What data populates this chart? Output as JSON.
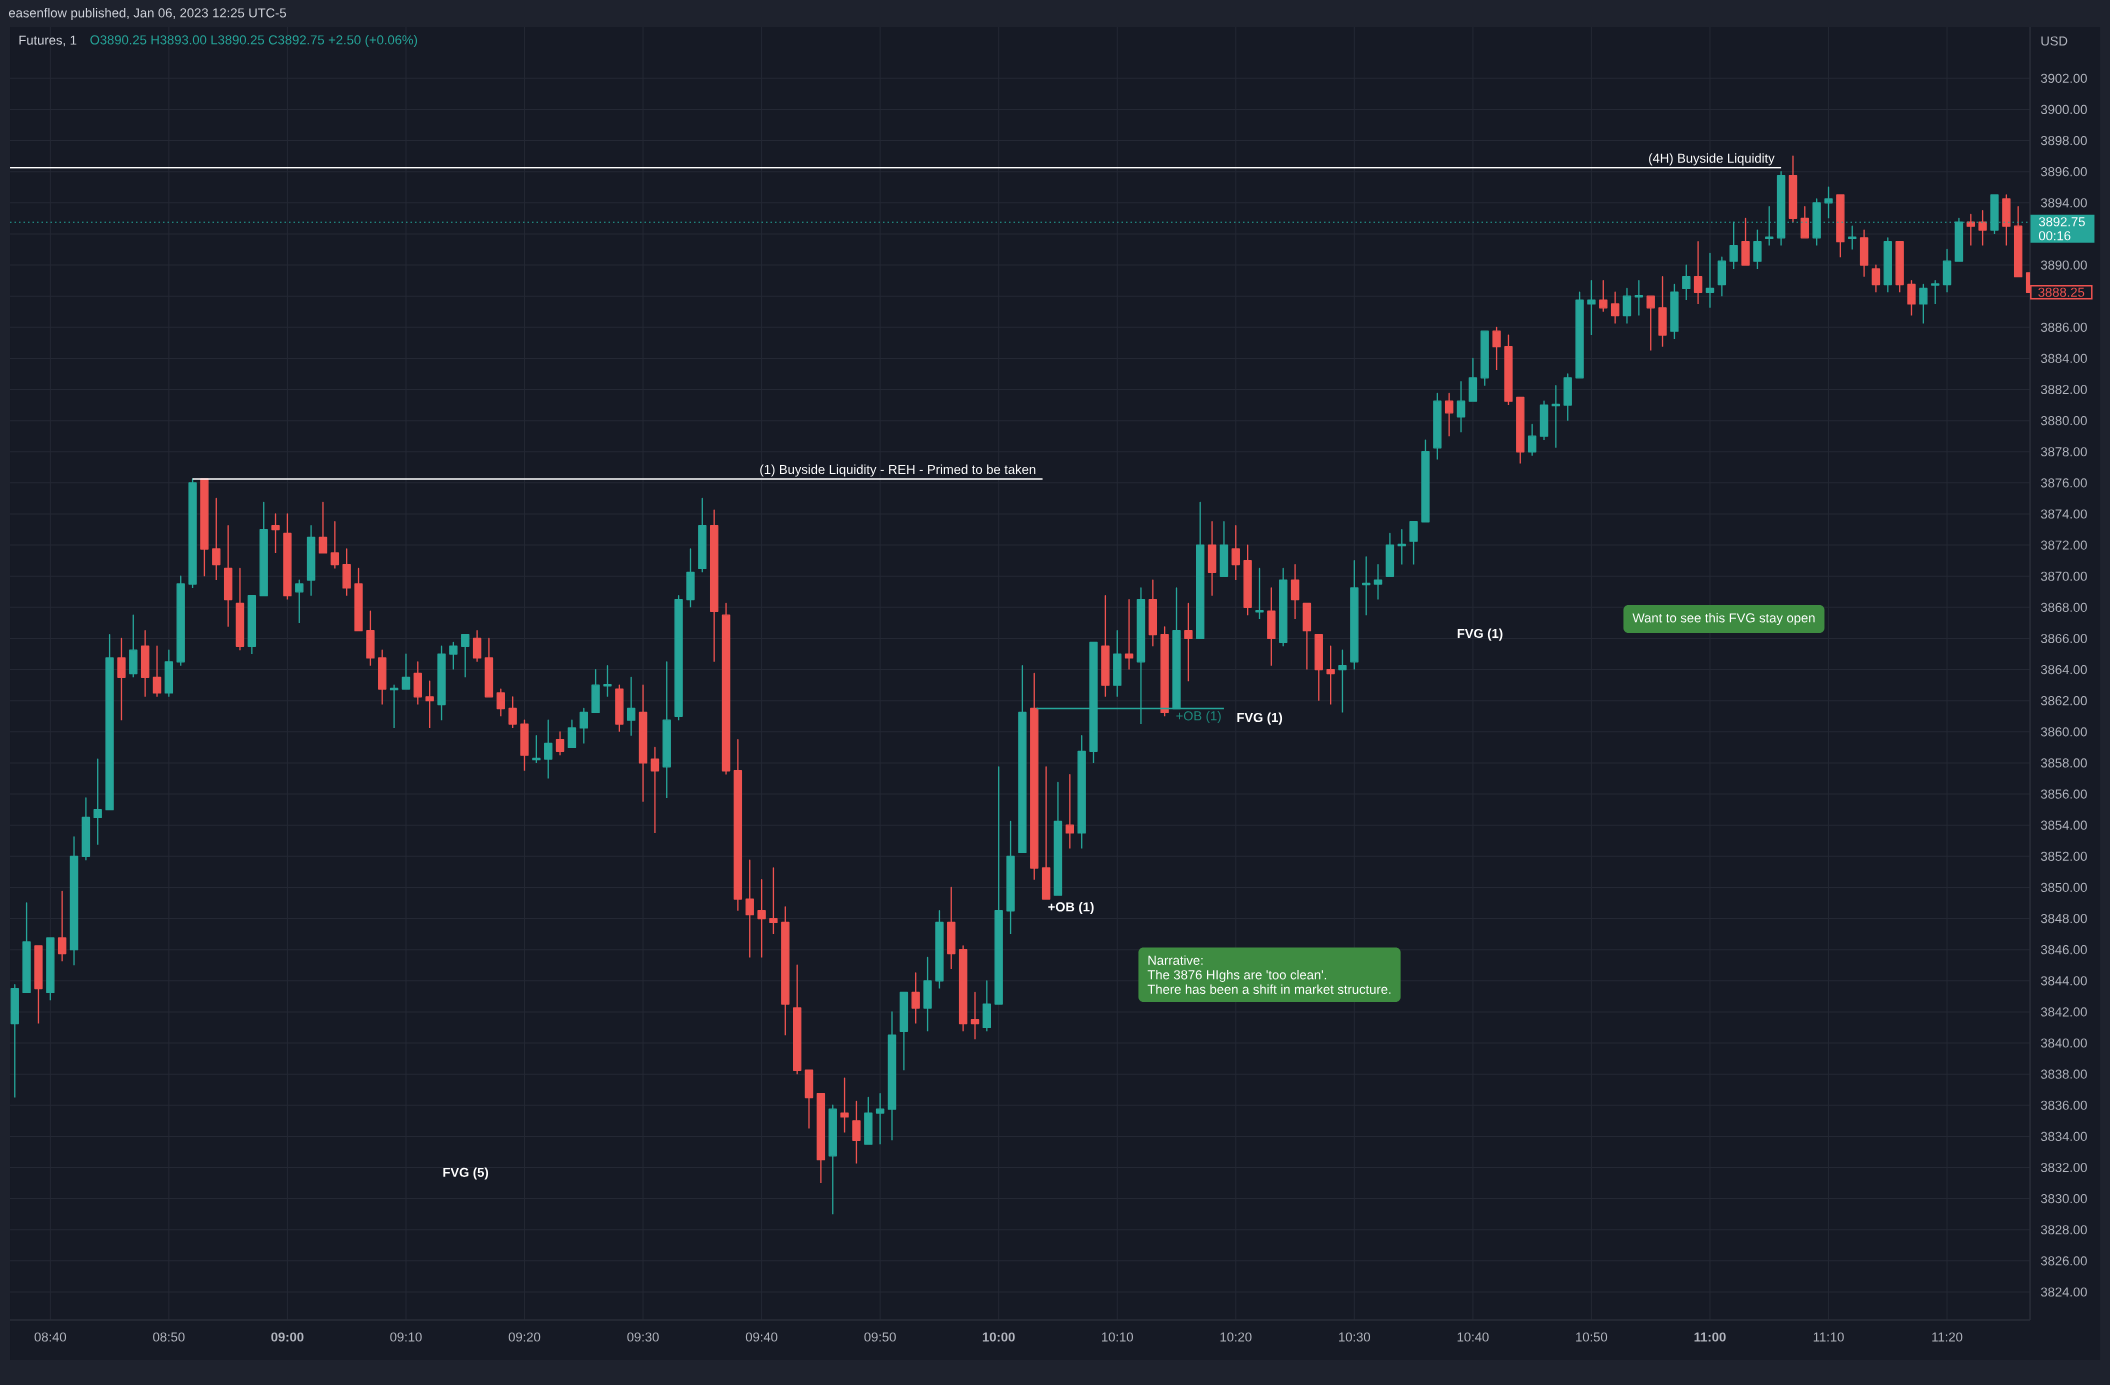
{
  "chart_data": {
    "type": "candlestick",
    "title": "Futures, 1",
    "subtitle": "O3890.25 H3893.00 L3890.25 C3892.75 +2.50 (+0.06%)",
    "ylabel": "USD",
    "x": [
      8.6167,
      8.6333,
      8.65,
      8.6667,
      8.6833,
      8.7,
      8.7167,
      8.7333,
      8.75,
      8.7667,
      8.7833,
      8.8,
      8.8167,
      8.8333,
      8.85,
      8.8667,
      8.8833,
      8.9,
      8.9167,
      8.9333,
      8.95,
      8.9667,
      8.9833,
      9,
      9.0167,
      9.0333,
      9.05,
      9.0667,
      9.0833,
      9.1,
      9.1167,
      9.1333,
      9.15,
      9.1667,
      9.1833,
      9.2,
      9.2167,
      9.2333,
      9.25,
      9.2667,
      9.2833,
      9.3,
      9.3167,
      9.3333,
      9.35,
      9.3667,
      9.3833,
      9.4,
      9.4167,
      9.4333,
      9.45,
      9.4667,
      9.4833,
      9.5,
      9.5167,
      9.5333,
      9.55,
      9.5667,
      9.5833,
      9.6,
      9.6167,
      9.6333,
      9.65,
      9.6667,
      9.6833,
      9.7,
      9.7167,
      9.7333,
      9.75,
      9.7667,
      9.7833,
      9.8,
      9.8167,
      9.8333,
      9.85,
      9.8667,
      9.8833,
      9.9,
      9.9167,
      9.9333,
      9.95,
      9.9667,
      9.9833,
      10,
      10.0167,
      10.0333,
      10.05,
      10.0667,
      10.0833,
      10.1,
      10.1167,
      10.1333,
      10.15,
      10.1667,
      10.1833,
      10.2,
      10.2167,
      10.2333,
      10.25,
      10.2667,
      10.2833,
      10.3,
      10.3167,
      10.3333,
      10.35,
      10.3667,
      10.3833,
      10.4,
      10.4167,
      10.4333,
      10.45,
      10.4667,
      10.4833,
      10.5,
      10.5167,
      10.5333,
      10.55,
      10.5667,
      10.5833,
      10.6,
      10.6167,
      10.6333,
      10.65,
      10.6667,
      10.6833,
      10.7,
      10.7167,
      10.7333,
      10.75,
      10.7667,
      10.7833,
      10.8,
      10.8167,
      10.8333,
      10.85,
      10.8667,
      10.8833,
      10.9,
      10.9167,
      10.9333,
      10.95,
      10.9667,
      10.9833,
      11,
      11.0167,
      11.0333,
      11.05,
      11.0667,
      11.0833,
      11.1,
      11.1167,
      11.1333,
      11.15,
      11.1667,
      11.1833,
      11.2,
      11.2167,
      11.2333,
      11.25,
      11.2667,
      11.2833,
      11.3,
      11.3167,
      11.3333,
      11.35,
      11.3667,
      11.3833,
      11.4,
      11.4167,
      11.4333,
      11.45
    ],
    "ohlc": [
      [
        3841.25,
        3843.75,
        3836.5,
        3843.5
      ],
      [
        3843.25,
        3849,
        3843.25,
        3846.5
      ],
      [
        3846.25,
        3846.25,
        3841.25,
        3843.5
      ],
      [
        3843.25,
        3846.75,
        3842.75,
        3846.75
      ],
      [
        3846.75,
        3849.75,
        3845.25,
        3845.75
      ],
      [
        3846,
        3853.25,
        3845,
        3852
      ],
      [
        3852,
        3855.75,
        3851.75,
        3854.5
      ],
      [
        3854.5,
        3858.25,
        3852.75,
        3855
      ],
      [
        3855,
        3866.25,
        3855,
        3864.75
      ],
      [
        3864.75,
        3866,
        3860.75,
        3863.5
      ],
      [
        3863.75,
        3867.5,
        3863.5,
        3865.25
      ],
      [
        3865.5,
        3866.5,
        3862.25,
        3863.5
      ],
      [
        3863.5,
        3865.5,
        3862.25,
        3862.5
      ],
      [
        3862.5,
        3865.25,
        3862.25,
        3864.5
      ],
      [
        3864.5,
        3870,
        3864.25,
        3869.5
      ],
      [
        3869.5,
        3876.25,
        3869.25,
        3876
      ],
      [
        3876.25,
        3876.25,
        3870,
        3871.75
      ],
      [
        3871.75,
        3875,
        3869.75,
        3870.75
      ],
      [
        3870.5,
        3873.25,
        3866.75,
        3868.5
      ],
      [
        3868.25,
        3870.5,
        3865.25,
        3865.5
      ],
      [
        3865.5,
        3868.75,
        3865,
        3868.75
      ],
      [
        3868.75,
        3874.75,
        3868.75,
        3873
      ],
      [
        3873.25,
        3874,
        3871.5,
        3873
      ],
      [
        3872.75,
        3874,
        3868.5,
        3868.75
      ],
      [
        3869,
        3869.75,
        3867,
        3869.5
      ],
      [
        3869.75,
        3873.25,
        3868.75,
        3872.5
      ],
      [
        3872.5,
        3874.75,
        3871.5,
        3871.5
      ],
      [
        3871.5,
        3873.5,
        3870.5,
        3870.75
      ],
      [
        3870.75,
        3871.75,
        3868.75,
        3869.25
      ],
      [
        3869.5,
        3870.5,
        3866.5,
        3866.5
      ],
      [
        3866.5,
        3867.75,
        3864.25,
        3864.75
      ],
      [
        3864.75,
        3865.25,
        3861.75,
        3862.75
      ],
      [
        3862.75,
        3863,
        3860.25,
        3862.75
      ],
      [
        3862.75,
        3865,
        3862.75,
        3863.5
      ],
      [
        3863.75,
        3864.5,
        3861.75,
        3862.25
      ],
      [
        3862.25,
        3863.25,
        3860.25,
        3862
      ],
      [
        3861.75,
        3865.5,
        3860.75,
        3865
      ],
      [
        3865,
        3865.75,
        3864,
        3865.5
      ],
      [
        3865.5,
        3866.25,
        3863.5,
        3866.25
      ],
      [
        3866,
        3866.5,
        3864.5,
        3864.75
      ],
      [
        3864.75,
        3866,
        3862.25,
        3862.25
      ],
      [
        3862.5,
        3862.75,
        3861,
        3861.5
      ],
      [
        3861.5,
        3862.25,
        3860.25,
        3860.5
      ],
      [
        3860.5,
        3860.75,
        3857.5,
        3858.5
      ],
      [
        3858.25,
        3859.75,
        3858,
        3858.25
      ],
      [
        3858.25,
        3860.75,
        3857,
        3859.25
      ],
      [
        3859.5,
        3860,
        3858.5,
        3858.75
      ],
      [
        3859,
        3860.75,
        3859,
        3860.25
      ],
      [
        3860.25,
        3861.5,
        3859.25,
        3861.25
      ],
      [
        3861.25,
        3864,
        3861.25,
        3863
      ],
      [
        3863,
        3864.25,
        3862.25,
        3863
      ],
      [
        3862.75,
        3863,
        3860,
        3860.5
      ],
      [
        3860.75,
        3863.5,
        3859.75,
        3861.5
      ],
      [
        3861.25,
        3863,
        3855.5,
        3858
      ],
      [
        3858.25,
        3859,
        3853.5,
        3857.5
      ],
      [
        3857.75,
        3864.5,
        3855.75,
        3860.75
      ],
      [
        3861,
        3868.75,
        3860.75,
        3868.5
      ],
      [
        3868.5,
        3871.75,
        3868,
        3870.25
      ],
      [
        3870.5,
        3875,
        3870.25,
        3873.25
      ],
      [
        3873.25,
        3874.25,
        3864.5,
        3867.75
      ],
      [
        3867.5,
        3868.25,
        3857.25,
        3857.5
      ],
      [
        3857.5,
        3859.5,
        3848.5,
        3849.25
      ],
      [
        3849.25,
        3851.75,
        3845.5,
        3848.25
      ],
      [
        3848.5,
        3850.5,
        3845.5,
        3848
      ],
      [
        3848,
        3851.25,
        3847,
        3847.75
      ],
      [
        3847.75,
        3848.75,
        3840.5,
        3842.5
      ],
      [
        3842.25,
        3845,
        3838,
        3838.25
      ],
      [
        3838.25,
        3838.25,
        3834.5,
        3836.5
      ],
      [
        3836.75,
        3836.75,
        3831,
        3832.5
      ],
      [
        3832.75,
        3836,
        3829,
        3835.75
      ],
      [
        3835.5,
        3837.75,
        3834.25,
        3835.25
      ],
      [
        3835,
        3836.25,
        3832.25,
        3833.75
      ],
      [
        3833.5,
        3836.5,
        3833.5,
        3835.5
      ],
      [
        3835.5,
        3836.75,
        3833.5,
        3835.75
      ],
      [
        3835.75,
        3842,
        3833.75,
        3840.5
      ],
      [
        3840.75,
        3843.25,
        3838.25,
        3843.25
      ],
      [
        3843.25,
        3844.5,
        3841.25,
        3842.25
      ],
      [
        3842.25,
        3845.5,
        3840.75,
        3844
      ],
      [
        3844,
        3848.5,
        3843.5,
        3847.75
      ],
      [
        3847.75,
        3850,
        3844.75,
        3845.75
      ],
      [
        3846,
        3846.25,
        3840.75,
        3841.25
      ],
      [
        3841.5,
        3843.25,
        3840.25,
        3841.25
      ],
      [
        3841,
        3844,
        3840.75,
        3842.5
      ],
      [
        3842.5,
        3857.75,
        3842.5,
        3848.5
      ],
      [
        3848.5,
        3854.25,
        3847,
        3852
      ],
      [
        3852.25,
        3864.25,
        3852.25,
        3861.25
      ],
      [
        3861.5,
        3863.75,
        3850.5,
        3851.25
      ],
      [
        3851.25,
        3857.75,
        3849.25,
        3849.25
      ],
      [
        3849.5,
        3856.75,
        3849.5,
        3854.25
      ],
      [
        3854,
        3857.25,
        3852.5,
        3853.5
      ],
      [
        3853.5,
        3859.75,
        3852.5,
        3858.75
      ],
      [
        3858.75,
        3865.75,
        3858,
        3865.75
      ],
      [
        3865.5,
        3868.75,
        3862.25,
        3863
      ],
      [
        3863,
        3866.5,
        3862.25,
        3865
      ],
      [
        3865,
        3868.5,
        3864,
        3864.75
      ],
      [
        3864.5,
        3869.25,
        3860.5,
        3868.5
      ],
      [
        3868.5,
        3869.75,
        3865.5,
        3866.25
      ],
      [
        3866.25,
        3866.75,
        3861,
        3861.25
      ],
      [
        3861.5,
        3869.25,
        3861.5,
        3866.5
      ],
      [
        3866.5,
        3868.25,
        3863.25,
        3866
      ],
      [
        3866,
        3874.75,
        3866,
        3872
      ],
      [
        3872,
        3873.5,
        3868.75,
        3870.25
      ],
      [
        3870,
        3873.5,
        3870,
        3872
      ],
      [
        3871.75,
        3873.25,
        3869.75,
        3870.75
      ],
      [
        3871,
        3872,
        3867.5,
        3868
      ],
      [
        3867.75,
        3870.5,
        3867.25,
        3867.75
      ],
      [
        3867.75,
        3869.25,
        3864.25,
        3866
      ],
      [
        3865.75,
        3870.5,
        3865.5,
        3869.75
      ],
      [
        3869.75,
        3870.75,
        3867.25,
        3868.5
      ],
      [
        3868.25,
        3868.25,
        3864,
        3866.5
      ],
      [
        3866.25,
        3866.25,
        3862,
        3864
      ],
      [
        3864,
        3865.5,
        3861.75,
        3863.75
      ],
      [
        3864,
        3865.25,
        3861.25,
        3864.25
      ],
      [
        3864.5,
        3871,
        3864,
        3869.25
      ],
      [
        3869.5,
        3871.25,
        3867.5,
        3869.5
      ],
      [
        3869.5,
        3870.75,
        3868.5,
        3869.75
      ],
      [
        3870,
        3872.75,
        3870,
        3872
      ],
      [
        3872,
        3873,
        3870.75,
        3872
      ],
      [
        3872.25,
        3873.5,
        3870.75,
        3873.5
      ],
      [
        3873.5,
        3878.75,
        3873.5,
        3878
      ],
      [
        3878.25,
        3881.75,
        3877.5,
        3881.25
      ],
      [
        3881.25,
        3881.75,
        3879,
        3880.5
      ],
      [
        3880.25,
        3882.5,
        3879.25,
        3881.25
      ],
      [
        3881.25,
        3884,
        3881.25,
        3882.75
      ],
      [
        3882.75,
        3885.75,
        3882.25,
        3885.75
      ],
      [
        3885.75,
        3886,
        3883.25,
        3884.75
      ],
      [
        3884.75,
        3885.5,
        3881,
        3881.25
      ],
      [
        3881.5,
        3881.5,
        3877.25,
        3878
      ],
      [
        3878,
        3879.75,
        3877.75,
        3879
      ],
      [
        3879,
        3881.25,
        3878.75,
        3881
      ],
      [
        3881,
        3882.25,
        3878.25,
        3881
      ],
      [
        3881,
        3883,
        3880,
        3882.75
      ],
      [
        3882.75,
        3888.25,
        3882.75,
        3887.75
      ],
      [
        3887.5,
        3889,
        3885.5,
        3887.75
      ],
      [
        3887.75,
        3889,
        3887,
        3887.25
      ],
      [
        3887.5,
        3888.25,
        3886.25,
        3886.75
      ],
      [
        3886.75,
        3888.5,
        3886.25,
        3888
      ],
      [
        3888,
        3889,
        3886.75,
        3888
      ],
      [
        3888,
        3888,
        3884.5,
        3887.25
      ],
      [
        3887.25,
        3889.25,
        3884.75,
        3885.5
      ],
      [
        3885.75,
        3888.75,
        3885.25,
        3888.25
      ],
      [
        3888.5,
        3890,
        3887.75,
        3889.25
      ],
      [
        3889.25,
        3891.5,
        3887.5,
        3888.25
      ],
      [
        3888.25,
        3890.75,
        3887.25,
        3888.5
      ],
      [
        3888.75,
        3890.5,
        3888,
        3890.25
      ],
      [
        3890.25,
        3892.75,
        3889.75,
        3891.25
      ],
      [
        3891.5,
        3893,
        3890,
        3890
      ],
      [
        3890.25,
        3892.25,
        3889.75,
        3891.5
      ],
      [
        3891.75,
        3893.75,
        3891.25,
        3891.75
      ],
      [
        3891.75,
        3896,
        3891.25,
        3895.75
      ],
      [
        3895.75,
        3897,
        3892.75,
        3893
      ],
      [
        3893,
        3893.75,
        3891.75,
        3891.75
      ],
      [
        3891.75,
        3894.25,
        3891.25,
        3894
      ],
      [
        3894,
        3895,
        3893,
        3894.25
      ],
      [
        3894.5,
        3894.5,
        3890.5,
        3891.5
      ],
      [
        3891.75,
        3892.5,
        3891,
        3891.75
      ],
      [
        3891.75,
        3892.25,
        3889.25,
        3890
      ],
      [
        3889.75,
        3890,
        3888.25,
        3888.75
      ],
      [
        3888.75,
        3891.75,
        3888.25,
        3891.5
      ],
      [
        3891.5,
        3891.5,
        3888.25,
        3888.75
      ],
      [
        3888.75,
        3889,
        3886.75,
        3887.5
      ],
      [
        3887.5,
        3888.75,
        3886.25,
        3888.5
      ],
      [
        3888.75,
        3889,
        3887.5,
        3888.75
      ],
      [
        3888.75,
        3891,
        3888.25,
        3890.25
      ],
      [
        3890.25,
        3893,
        3890.25,
        3892.75
      ],
      [
        3892.75,
        3893.25,
        3891.25,
        3892.5
      ],
      [
        3892.75,
        3893.5,
        3891.25,
        3892.25
      ],
      [
        3892.25,
        3894.5,
        3892,
        3894.5
      ],
      [
        3894.25,
        3894.5,
        3891.25,
        3892.5
      ],
      [
        3892.5,
        3893.75,
        3889.25,
        3889.25
      ],
      [
        3889.5,
        3889.5,
        3888.25,
        3888.25
      ]
    ],
    "colors": [
      "#26a69a",
      "#26a69a",
      "#ef5350",
      "#26a69a",
      "#ef5350",
      "#26a69a",
      "#26a69a",
      "#26a69a",
      "#26a69a",
      "#ef5350",
      "#26a69a",
      "#ef5350",
      "#ef5350",
      "#26a69a",
      "#26a69a",
      "#26a69a",
      "#ef5350",
      "#ef5350",
      "#ef5350",
      "#ef5350",
      "#26a69a",
      "#26a69a",
      "#ef5350",
      "#ef5350",
      "#26a69a",
      "#26a69a",
      "#ef5350",
      "#ef5350",
      "#ef5350",
      "#ef5350",
      "#ef5350",
      "#ef5350",
      "#26a69a",
      "#26a69a",
      "#ef5350",
      "#ef5350",
      "#26a69a",
      "#26a69a",
      "#26a69a",
      "#ef5350",
      "#ef5350",
      "#ef5350",
      "#ef5350",
      "#ef5350",
      "#26a69a",
      "#26a69a",
      "#ef5350",
      "#26a69a",
      "#26a69a",
      "#26a69a",
      "#26a69a",
      "#ef5350",
      "#26a69a",
      "#ef5350",
      "#ef5350",
      "#26a69a",
      "#26a69a",
      "#26a69a",
      "#26a69a",
      "#ef5350",
      "#ef5350",
      "#ef5350",
      "#ef5350",
      "#ef5350",
      "#ef5350",
      "#ef5350",
      "#ef5350",
      "#ef5350",
      "#ef5350",
      "#26a69a",
      "#ef5350",
      "#ef5350",
      "#26a69a",
      "#26a69a",
      "#26a69a",
      "#26a69a",
      "#ef5350",
      "#26a69a",
      "#26a69a",
      "#ef5350",
      "#ef5350",
      "#ef5350",
      "#26a69a",
      "#26a69a",
      "#26a69a",
      "#26a69a",
      "#ef5350",
      "#ef5350",
      "#26a69a",
      "#ef5350",
      "#26a69a",
      "#26a69a",
      "#ef5350",
      "#26a69a",
      "#ef5350",
      "#26a69a",
      "#ef5350",
      "#ef5350",
      "#26a69a",
      "#ef5350",
      "#26a69a",
      "#ef5350",
      "#26a69a",
      "#ef5350",
      "#ef5350",
      "#26a69a",
      "#ef5350",
      "#26a69a",
      "#ef5350",
      "#ef5350",
      "#ef5350",
      "#ef5350",
      "#26a69a",
      "#26a69a",
      "#26a69a",
      "#26a69a",
      "#26a69a",
      "#26a69a",
      "#26a69a",
      "#26a69a",
      "#26a69a",
      "#ef5350",
      "#26a69a",
      "#26a69a",
      "#26a69a",
      "#ef5350",
      "#ef5350",
      "#ef5350",
      "#26a69a",
      "#26a69a",
      "#26a69a",
      "#26a69a",
      "#26a69a",
      "#26a69a",
      "#ef5350",
      "#ef5350",
      "#26a69a",
      "#26a69a",
      "#ef5350",
      "#ef5350",
      "#26a69a",
      "#26a69a",
      "#ef5350",
      "#26a69a",
      "#26a69a",
      "#26a69a",
      "#ef5350",
      "#26a69a",
      "#26a69a",
      "#26a69a",
      "#ef5350",
      "#ef5350",
      "#26a69a",
      "#26a69a",
      "#ef5350",
      "#26a69a",
      "#ef5350",
      "#ef5350",
      "#26a69a",
      "#ef5350",
      "#ef5350",
      "#26a69a",
      "#26a69a",
      "#26a69a",
      "#26a69a",
      "#ef5350",
      "#ef5350",
      "#26a69a",
      "#ef5350",
      "#ef5350",
      "#ef5350"
    ],
    "series": [
      {
        "type": "line",
        "x": [
          8.61,
          11.1
        ],
        "values": [
          3896.25,
          3896.25
        ],
        "color": "#ffffff"
      },
      {
        "type": "line",
        "x": [
          8.8667,
          10.0617
        ],
        "values": [
          3876.25,
          3876.25
        ],
        "color": "#ffffff"
      },
      {
        "type": "line",
        "x": [
          10.0533,
          10.3167
        ],
        "values": [
          3861.5,
          3861.5
        ],
        "color": "#26a69a"
      }
    ],
    "xlim": [
      8.61,
      11.45
    ],
    "ylim": [
      3822.2,
      3905.3
    ],
    "xticks": [
      {
        "value": 8.6667,
        "label": "08:40"
      },
      {
        "value": 8.8333,
        "label": "08:50"
      },
      {
        "value": 9,
        "label": "09:00"
      },
      {
        "value": 9.1667,
        "label": "09:10"
      },
      {
        "value": 9.3333,
        "label": "09:20"
      },
      {
        "value": 9.5,
        "label": "09:30"
      },
      {
        "value": 9.6667,
        "label": "09:40"
      },
      {
        "value": 9.8333,
        "label": "09:50"
      },
      {
        "value": 10,
        "label": "10:00"
      },
      {
        "value": 10.1667,
        "label": "10:10"
      },
      {
        "value": 10.3333,
        "label": "10:20"
      },
      {
        "value": 10.5,
        "label": "10:30"
      },
      {
        "value": 10.6667,
        "label": "10:40"
      },
      {
        "value": 10.8333,
        "label": "10:50"
      },
      {
        "value": 11,
        "label": "11:00"
      },
      {
        "value": 11.1667,
        "label": "11:10"
      },
      {
        "value": 11.3333,
        "label": "11:20"
      }
    ],
    "yticks": [
      {
        "value": 3824,
        "label": "3824.00"
      },
      {
        "value": 3826,
        "label": "3826.00"
      },
      {
        "value": 3828,
        "label": "3828.00"
      },
      {
        "value": 3830,
        "label": "3830.00"
      },
      {
        "value": 3832,
        "label": "3832.00"
      },
      {
        "value": 3834,
        "label": "3834.00"
      },
      {
        "value": 3836,
        "label": "3836.00"
      },
      {
        "value": 3838,
        "label": "3838.00"
      },
      {
        "value": 3840,
        "label": "3840.00"
      },
      {
        "value": 3842,
        "label": "3842.00"
      },
      {
        "value": 3844,
        "label": "3844.00"
      },
      {
        "value": 3846,
        "label": "3846.00"
      },
      {
        "value": 3848,
        "label": "3848.00"
      },
      {
        "value": 3850,
        "label": "3850.00"
      },
      {
        "value": 3852,
        "label": "3852.00"
      },
      {
        "value": 3854,
        "label": "3854.00"
      },
      {
        "value": 3856,
        "label": "3856.00"
      },
      {
        "value": 3858,
        "label": "3858.00"
      },
      {
        "value": 3860,
        "label": "3860.00"
      },
      {
        "value": 3862,
        "label": "3862.00"
      },
      {
        "value": 3864,
        "label": "3864.00"
      },
      {
        "value": 3866,
        "label": "3866.00"
      },
      {
        "value": 3868,
        "label": "3868.00"
      },
      {
        "value": 3870,
        "label": "3870.00"
      },
      {
        "value": 3872,
        "label": "3872.00"
      },
      {
        "value": 3874,
        "label": "3874.00"
      },
      {
        "value": 3876,
        "label": "3876.00"
      },
      {
        "value": 3878,
        "label": "3878.00"
      },
      {
        "value": 3880,
        "label": "3880.00"
      },
      {
        "value": 3882,
        "label": "3882.00"
      },
      {
        "value": 3884,
        "label": "3884.00"
      },
      {
        "value": 3886,
        "label": "3886.00"
      },
      {
        "value": 3888,
        "label": null
      },
      {
        "value": 3890,
        "label": "3890.00"
      },
      {
        "value": 3892,
        "label": null
      },
      {
        "value": 3894,
        "label": "3894.00"
      },
      {
        "value": 3896,
        "label": "3896.00"
      },
      {
        "value": 3898,
        "label": "3898.00"
      },
      {
        "value": 3900,
        "label": "3900.00"
      },
      {
        "value": 3902,
        "label": "3902.00"
      }
    ],
    "grid": true,
    "ref_lines": [
      {
        "axis": "y",
        "value": 3892.75,
        "label": "3892.75 00:16",
        "color": "#26a69a",
        "line_style": "dotted"
      }
    ],
    "annotations": [
      "easenflow published, Jan 06, 2023 12:25 UTC-5",
      {
        "text": "(4H) Buyside Liquidity",
        "x": 11.1,
        "y": 3896.25
      },
      {
        "text": "(1) Buyside Liquidity - REH - Primed to be taken",
        "x": 10.0617,
        "y": 3876.25
      },
      "FVG (5)",
      "+OB (1)",
      {
        "text": "+OB (1)",
        "x": 10.3167,
        "y": 3861.5
      },
      "FVG (1)",
      "FVG (1)",
      "Want to see this FVG stay open",
      "Narrative:",
      "The 3876 HIghs are 'too clean'.",
      "There has been a shift in market structure.",
      {
        "text": "3888.25",
        "x": 11.45,
        "y": 3888.25
      }
    ]
  }
}
